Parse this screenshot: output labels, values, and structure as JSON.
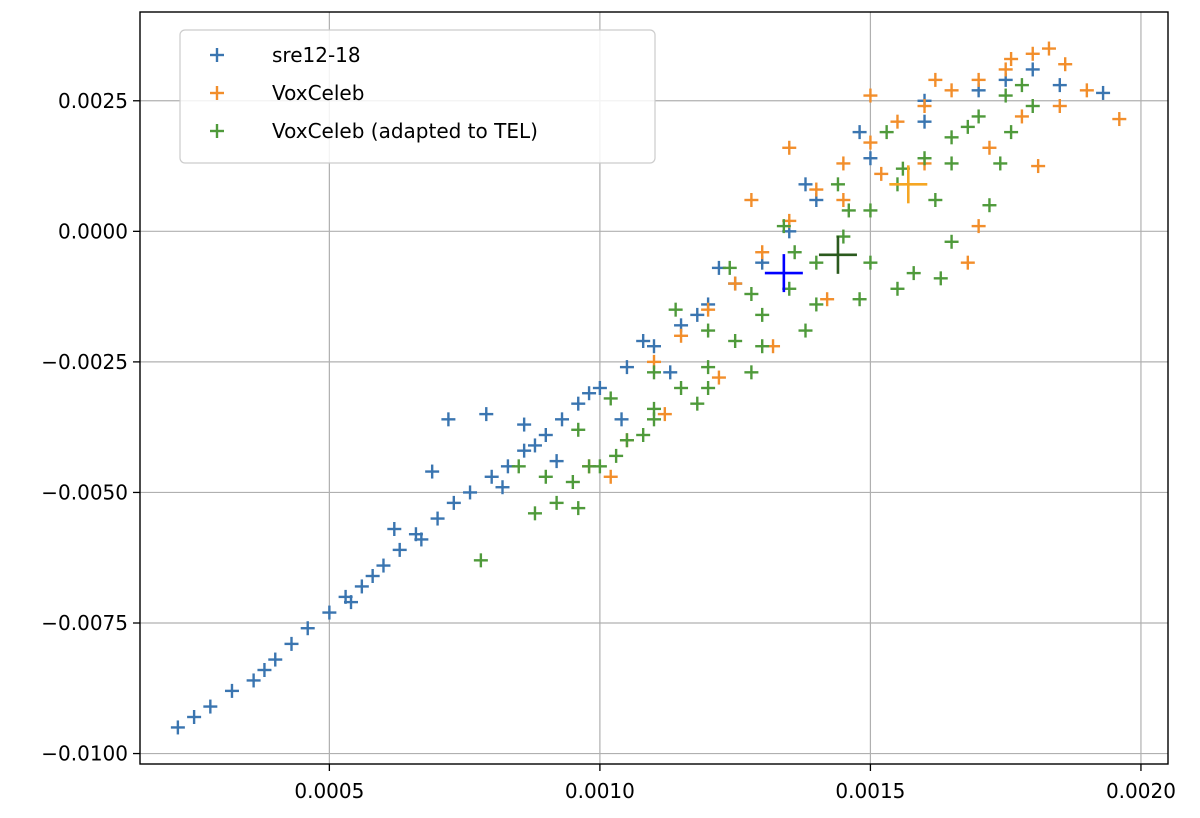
{
  "chart_data": {
    "type": "scatter",
    "marker": "plus",
    "grid": true,
    "legend_position": "top-left",
    "xlim": [
      0.00015,
      0.00205
    ],
    "ylim": [
      -0.0102,
      0.0042
    ],
    "x_ticks": [
      {
        "value": 0.0005,
        "label": "0.0005"
      },
      {
        "value": 0.001,
        "label": "0.0010"
      },
      {
        "value": 0.0015,
        "label": "0.0015"
      },
      {
        "value": 0.002,
        "label": "0.0020"
      }
    ],
    "y_ticks": [
      {
        "value": 0.0025,
        "label": "0.0025"
      },
      {
        "value": 0.0,
        "label": "0.0000"
      },
      {
        "value": -0.0025,
        "label": "−0.0025"
      },
      {
        "value": -0.005,
        "label": "−0.0050"
      },
      {
        "value": -0.0075,
        "label": "−0.0075"
      },
      {
        "value": -0.01,
        "label": "−0.0100"
      }
    ],
    "series": [
      {
        "name": "sre12-18",
        "color": "#3a75b0",
        "points": [
          [
            0.00022,
            -0.0095
          ],
          [
            0.00025,
            -0.0093
          ],
          [
            0.00028,
            -0.0091
          ],
          [
            0.00032,
            -0.0088
          ],
          [
            0.00036,
            -0.0086
          ],
          [
            0.0004,
            -0.0082
          ],
          [
            0.00043,
            -0.0079
          ],
          [
            0.00046,
            -0.0076
          ],
          [
            0.0005,
            -0.0073
          ],
          [
            0.00053,
            -0.007
          ],
          [
            0.00056,
            -0.0068
          ],
          [
            0.0006,
            -0.0064
          ],
          [
            0.00063,
            -0.0061
          ],
          [
            0.00066,
            -0.0058
          ],
          [
            0.0007,
            -0.0055
          ],
          [
            0.00073,
            -0.0052
          ],
          [
            0.00076,
            -0.005
          ],
          [
            0.0008,
            -0.0047
          ],
          [
            0.00083,
            -0.0045
          ],
          [
            0.00086,
            -0.0042
          ],
          [
            0.0009,
            -0.0039
          ],
          [
            0.00093,
            -0.0036
          ],
          [
            0.00096,
            -0.0033
          ],
          [
            0.001,
            -0.003
          ],
          [
            0.00105,
            -0.0026
          ],
          [
            0.0011,
            -0.0022
          ],
          [
            0.00115,
            -0.0018
          ],
          [
            0.0012,
            -0.0014
          ],
          [
            0.00125,
            -0.001
          ],
          [
            0.0013,
            -0.0006
          ],
          [
            0.00135,
            0.0
          ],
          [
            0.0014,
            0.0006
          ],
          [
            0.0015,
            0.0014
          ],
          [
            0.0016,
            0.0021
          ],
          [
            0.0017,
            0.0027
          ],
          [
            0.0018,
            0.0031
          ],
          [
            0.00193,
            0.00265
          ],
          [
            0.00062,
            -0.0057
          ],
          [
            0.00079,
            -0.0035
          ],
          [
            0.00072,
            -0.0036
          ],
          [
            0.00067,
            -0.0059
          ],
          [
            0.00054,
            -0.0071
          ],
          [
            0.00038,
            -0.0084
          ],
          [
            0.00058,
            -0.0066
          ],
          [
            0.00088,
            -0.0041
          ],
          [
            0.00098,
            -0.0031
          ],
          [
            0.00108,
            -0.0021
          ],
          [
            0.00118,
            -0.0016
          ],
          [
            0.00122,
            -0.0007
          ],
          [
            0.00138,
            0.0009
          ],
          [
            0.00148,
            0.0019
          ],
          [
            0.0016,
            0.0025
          ],
          [
            0.00175,
            0.0029
          ],
          [
            0.00185,
            0.0028
          ],
          [
            0.00069,
            -0.0046
          ],
          [
            0.00082,
            -0.0049
          ],
          [
            0.00092,
            -0.0044
          ],
          [
            0.00104,
            -0.0036
          ],
          [
            0.00086,
            -0.0037
          ],
          [
            0.00113,
            -0.0027
          ]
        ],
        "centroid": [
          0.00134,
          -0.0008
        ],
        "centroid_color": "#0000ff"
      },
      {
        "name": "VoxCeleb",
        "color": "#f28e2b",
        "points": [
          [
            0.0011,
            -0.0025
          ],
          [
            0.00115,
            -0.002
          ],
          [
            0.0012,
            -0.0015
          ],
          [
            0.00125,
            -0.001
          ],
          [
            0.0013,
            -0.0004
          ],
          [
            0.00135,
            0.0002
          ],
          [
            0.0014,
            0.0008
          ],
          [
            0.00145,
            0.0013
          ],
          [
            0.0015,
            0.0017
          ],
          [
            0.00155,
            0.0021
          ],
          [
            0.0016,
            0.0024
          ],
          [
            0.00165,
            0.0027
          ],
          [
            0.0017,
            0.0029
          ],
          [
            0.00175,
            0.0031
          ],
          [
            0.0018,
            0.0034
          ],
          [
            0.00183,
            0.0035
          ],
          [
            0.00186,
            0.0032
          ],
          [
            0.0019,
            0.0027
          ],
          [
            0.00196,
            0.00215
          ],
          [
            0.00181,
            0.00125
          ],
          [
            0.00172,
            0.0016
          ],
          [
            0.00178,
            0.0022
          ],
          [
            0.00185,
            0.0024
          ],
          [
            0.0016,
            0.0013
          ],
          [
            0.00152,
            0.0011
          ],
          [
            0.00145,
            0.0006
          ],
          [
            0.0017,
            0.0001
          ],
          [
            0.00168,
            -0.0006
          ],
          [
            0.00142,
            -0.0013
          ],
          [
            0.00132,
            -0.0022
          ],
          [
            0.00122,
            -0.0028
          ],
          [
            0.00112,
            -0.0035
          ],
          [
            0.00105,
            -0.004
          ],
          [
            0.00098,
            -0.0045
          ],
          [
            0.00102,
            -0.0047
          ],
          [
            0.00135,
            0.0016
          ],
          [
            0.00128,
            0.0006
          ],
          [
            0.0015,
            0.0026
          ],
          [
            0.00162,
            0.0029
          ],
          [
            0.00176,
            0.0033
          ]
        ],
        "centroid": [
          0.00157,
          0.0009
        ],
        "centroid_color": "#f5a623"
      },
      {
        "name": "VoxCeleb (adapted to TEL)",
        "color": "#4f9a3b",
        "points": [
          [
            0.00095,
            -0.0048
          ],
          [
            0.001,
            -0.0045
          ],
          [
            0.00105,
            -0.004
          ],
          [
            0.0011,
            -0.0034
          ],
          [
            0.00115,
            -0.003
          ],
          [
            0.0012,
            -0.0026
          ],
          [
            0.00125,
            -0.0021
          ],
          [
            0.0013,
            -0.0016
          ],
          [
            0.00135,
            -0.0011
          ],
          [
            0.0014,
            -0.0006
          ],
          [
            0.00145,
            -0.0001
          ],
          [
            0.0015,
            0.0004
          ],
          [
            0.00155,
            0.0009
          ],
          [
            0.0016,
            0.0014
          ],
          [
            0.00165,
            0.0018
          ],
          [
            0.0017,
            0.0022
          ],
          [
            0.00175,
            0.0026
          ],
          [
            0.00178,
            0.0028
          ],
          [
            0.00172,
            0.0005
          ],
          [
            0.00165,
            -0.0002
          ],
          [
            0.00158,
            -0.0008
          ],
          [
            0.00148,
            -0.0013
          ],
          [
            0.00138,
            -0.0019
          ],
          [
            0.00128,
            -0.0027
          ],
          [
            0.00118,
            -0.0033
          ],
          [
            0.00108,
            -0.0039
          ],
          [
            0.00098,
            -0.0045
          ],
          [
            0.00092,
            -0.0052
          ],
          [
            0.00088,
            -0.0054
          ],
          [
            0.00078,
            -0.0063
          ],
          [
            0.0009,
            -0.0047
          ],
          [
            0.00096,
            -0.0038
          ],
          [
            0.00102,
            -0.0032
          ],
          [
            0.0011,
            -0.0027
          ],
          [
            0.0012,
            -0.0019
          ],
          [
            0.00128,
            -0.0012
          ],
          [
            0.00136,
            -0.0004
          ],
          [
            0.00146,
            0.0004
          ],
          [
            0.00156,
            0.0012
          ],
          [
            0.00162,
            0.0006
          ],
          [
            0.0015,
            -0.0006
          ],
          [
            0.0014,
            -0.0014
          ],
          [
            0.0013,
            -0.0022
          ],
          [
            0.0012,
            -0.003
          ],
          [
            0.0011,
            -0.0036
          ],
          [
            0.00103,
            -0.0043
          ],
          [
            0.00165,
            0.0013
          ],
          [
            0.00168,
            0.002
          ],
          [
            0.0018,
            0.0024
          ],
          [
            0.00174,
            0.0013
          ],
          [
            0.00163,
            -0.0009
          ],
          [
            0.00155,
            -0.0011
          ],
          [
            0.00085,
            -0.0045
          ],
          [
            0.00096,
            -0.0053
          ],
          [
            0.00144,
            0.0009
          ],
          [
            0.00134,
            0.0001
          ],
          [
            0.00124,
            -0.0007
          ],
          [
            0.00114,
            -0.0015
          ],
          [
            0.00153,
            0.0019
          ],
          [
            0.00176,
            0.0019
          ]
        ],
        "centroid": [
          0.00144,
          -0.00045
        ],
        "centroid_color": "#2b5a1e"
      }
    ],
    "legend": [
      {
        "label": "sre12-18",
        "color": "#3a75b0"
      },
      {
        "label": "VoxCeleb",
        "color": "#f28e2b"
      },
      {
        "label": "VoxCeleb (adapted to TEL)",
        "color": "#4f9a3b"
      }
    ]
  }
}
